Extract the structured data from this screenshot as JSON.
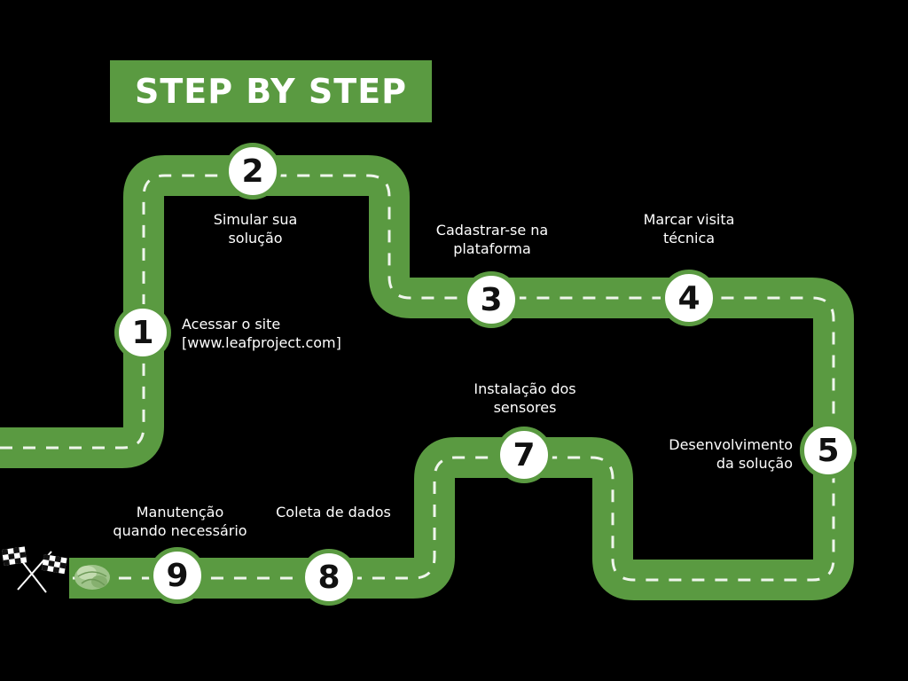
{
  "title": "STEP BY STEP",
  "colors": {
    "background": "#000000",
    "road": "#5a9a41",
    "lane_marking": "#ffffff",
    "marker_fill": "#ffffff",
    "marker_border": "#5a9a41"
  },
  "steps": [
    {
      "number": "1",
      "label": "Acessar o site\n[www.leafproject.com]"
    },
    {
      "number": "2",
      "label": "Simular sua\nsolução"
    },
    {
      "number": "3",
      "label": "Cadastrar-se na\nplataforma"
    },
    {
      "number": "4",
      "label": "Marcar visita\ntécnica"
    },
    {
      "number": "5",
      "label": "Desenvolvimento\nda solução"
    },
    {
      "number": "7",
      "label": "Instalação dos\nsensores"
    },
    {
      "number": "8",
      "label": "Coleta de dados"
    },
    {
      "number": "9",
      "label": "Manutenção\nquando necessário"
    }
  ],
  "icons": {
    "finish": "checkered-flags-icon",
    "crop": "lettuce-icon"
  }
}
